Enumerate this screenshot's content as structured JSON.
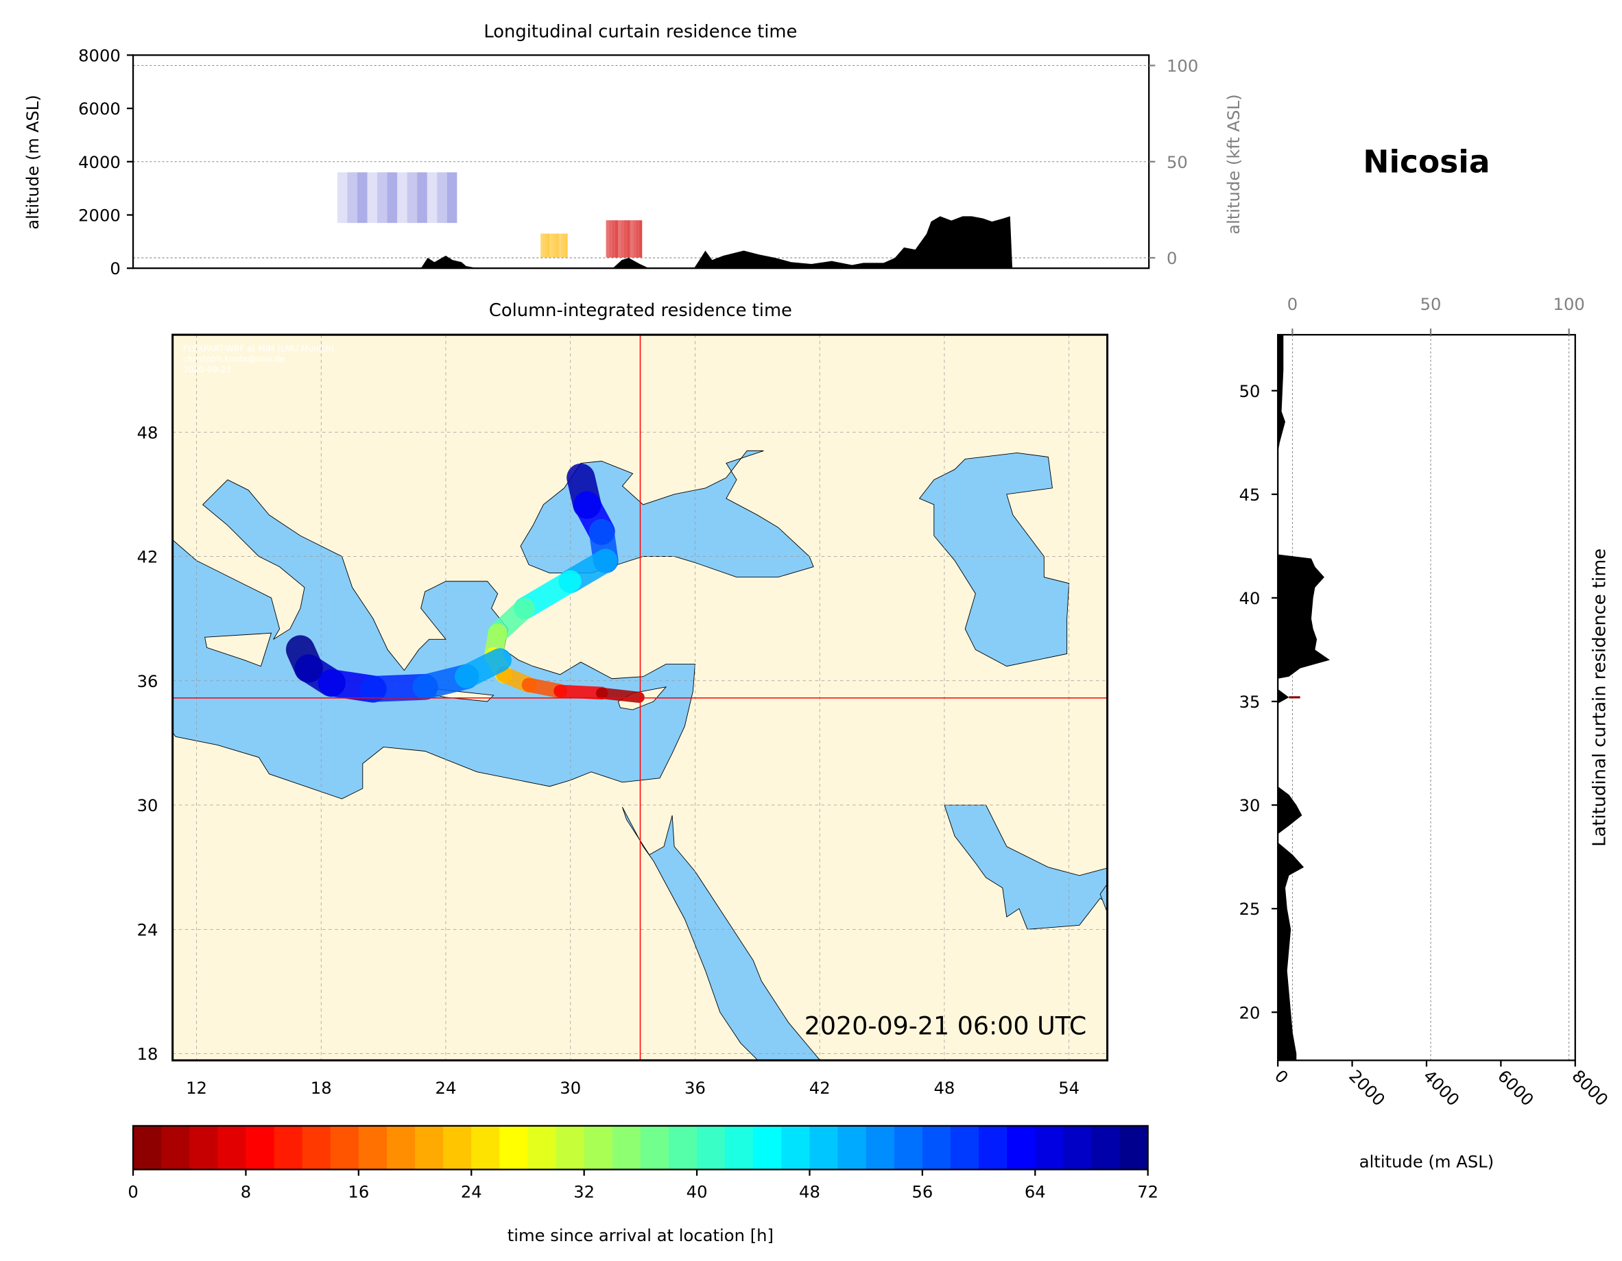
{
  "station": "Nicosia",
  "timestamp": "2020-09-21 06:00 UTC",
  "watermark": [
    "FLEXPART-WRF at MIM (LMU Munich)",
    "christoph.knote@lmu.de",
    "2020-09-23"
  ],
  "colors": {
    "land": "#FFF7DC",
    "sea": "#88CDF8",
    "marker": "#FF0000",
    "terrain": "#000000"
  },
  "chart_data": [
    {
      "type": "area",
      "title": "Longitudinal curtain residence time",
      "ylabel": "altitude (m ASL)",
      "ylabel_right": "altitude (kft ASL)",
      "ylim": [
        0,
        8000
      ],
      "yticks": [
        "0",
        "2000",
        "4000",
        "6000",
        "8000"
      ],
      "yticks_right": [
        "0",
        "50",
        "100"
      ],
      "grid": true,
      "terrain": {
        "lon": [
          23.6,
          23.9,
          24.2,
          24.7,
          25.0,
          25.4,
          25.6,
          26.1,
          32.1,
          32.5,
          32.8,
          33.3,
          33.7,
          35.7,
          36.0,
          36.2,
          36.5,
          37.0,
          37.9,
          38.6,
          39.3,
          40.0,
          40.9,
          41.8,
          42.7,
          43.2,
          44.1,
          44.6,
          45.0,
          45.5,
          46.0,
          46.2,
          46.6,
          47.1,
          47.6,
          48.0,
          48.5,
          48.9,
          49.4,
          49.7,
          49.8
        ],
        "altitude": [
          0,
          390,
          230,
          470,
          310,
          230,
          80,
          0,
          0,
          310,
          390,
          160,
          0,
          0,
          390,
          660,
          310,
          470,
          660,
          510,
          390,
          230,
          160,
          270,
          120,
          200,
          200,
          390,
          780,
          700,
          1290,
          1750,
          1950,
          1790,
          1950,
          1950,
          1870,
          1750,
          1870,
          1950,
          0
        ]
      },
      "residence": [
        {
          "lon": [
            19.9,
            25.2
          ],
          "altitude": [
            1700,
            3600
          ],
          "hours": 68
        },
        {
          "lon": [
            28.9,
            30.1
          ],
          "altitude": [
            400,
            1300
          ],
          "hours": 22
        },
        {
          "lon": [
            31.8,
            33.4
          ],
          "altitude": [
            400,
            1800
          ],
          "hours": 6
        }
      ]
    },
    {
      "type": "heatmap",
      "title": "Column-integrated residence time",
      "xticks": [
        "12",
        "18",
        "24",
        "30",
        "36",
        "42",
        "48",
        "54"
      ],
      "yticks": [
        "18",
        "24",
        "30",
        "36",
        "42",
        "48"
      ],
      "xlim": [
        10.85,
        55.85
      ],
      "ylim": [
        17.7,
        52.7
      ],
      "grid": true,
      "location": {
        "lon": 33.36,
        "lat": 35.17
      },
      "plume": [
        {
          "lon": [
            33.3,
            31.5,
            29.5,
            28.0,
            26.8,
            26.3,
            26.5,
            27.8,
            30.0,
            31.7,
            31.5,
            30.8,
            30.5
          ],
          "lat": [
            35.2,
            35.4,
            35.5,
            35.8,
            36.3,
            37.2,
            38.3,
            39.5,
            40.8,
            41.8,
            43.2,
            44.5,
            45.8
          ],
          "hours": [
            0,
            6,
            12,
            18,
            24,
            30,
            36,
            42,
            48,
            54,
            60,
            66,
            72
          ]
        },
        {
          "lon": [
            26.6,
            25.0,
            23.0,
            20.5,
            18.5,
            17.4,
            17.0
          ],
          "lat": [
            37.0,
            36.2,
            35.7,
            35.6,
            35.9,
            36.6,
            37.5
          ],
          "hours": [
            48,
            54,
            58,
            62,
            66,
            70,
            72
          ]
        }
      ]
    },
    {
      "type": "area",
      "title": "Latitudinal curtain residence time",
      "xlabel": "altitude (m ASL)",
      "xlim": [
        0,
        8000
      ],
      "xticks": [
        "0",
        "2000",
        "4000",
        "6000",
        "8000"
      ],
      "xticks_top": [
        "0",
        "50",
        "100"
      ],
      "yticks": [
        "20",
        "25",
        "30",
        "35",
        "40",
        "45",
        "50"
      ],
      "terrain": {
        "lat": [
          52.7,
          51,
          49,
          48.5,
          47.5,
          47,
          42.1,
          41.9,
          41.5,
          41.0,
          40.5,
          40,
          39,
          38.5,
          38,
          37.5,
          37.0,
          36.6,
          36.2,
          36.1,
          35.6,
          35.2,
          34.9,
          30.9,
          30.5,
          30,
          29.5,
          29.0,
          28.6,
          28.2,
          27.6,
          27.0,
          26.6,
          26.0,
          25,
          24,
          23,
          22,
          21,
          20,
          19,
          18,
          17.7
        ],
        "altitude": [
          150,
          150,
          100,
          200,
          50,
          0,
          0,
          900,
          1000,
          1250,
          1000,
          950,
          900,
          950,
          1050,
          1000,
          1400,
          600,
          300,
          0,
          0,
          300,
          0,
          0,
          300,
          500,
          650,
          300,
          0,
          0,
          400,
          700,
          300,
          200,
          250,
          350,
          300,
          250,
          300,
          350,
          400,
          500,
          500
        ]
      }
    },
    {
      "type": "colorbar",
      "xlabel": "time since arrival at location [h]",
      "xlim": [
        0,
        72
      ],
      "xticks": [
        "0",
        "8",
        "16",
        "24",
        "32",
        "40",
        "48",
        "56",
        "64",
        "72"
      ],
      "colormap": "jet_r"
    }
  ]
}
